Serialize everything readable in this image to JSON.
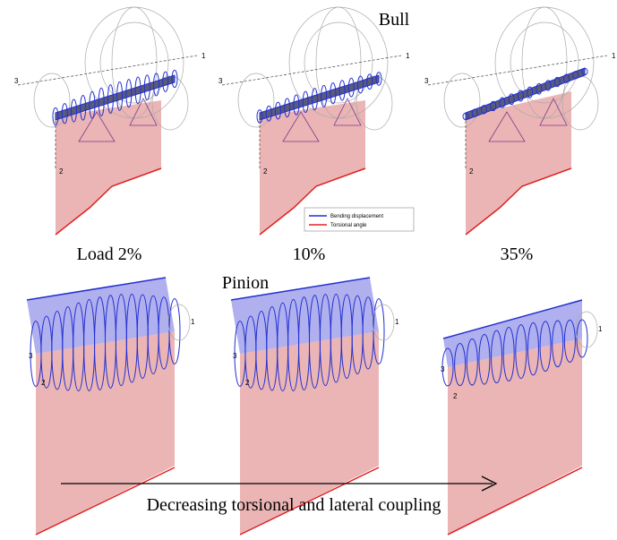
{
  "top_title": "Bull",
  "bottom_title": "Pinion",
  "load_labels": [
    "Load 2%",
    "10%",
    "35%"
  ],
  "legend": [
    "Bending displacement",
    "Torsional angle"
  ],
  "panels": [
    {
      "axes": [
        "1",
        "2",
        "3"
      ]
    },
    {
      "axes": [
        "1",
        "2",
        "3"
      ]
    },
    {
      "axes": [
        "1",
        "2",
        "3"
      ]
    },
    {
      "axes": [
        "1",
        "2",
        "3"
      ]
    },
    {
      "axes": [
        "1",
        "2",
        "3"
      ]
    },
    {
      "axes": [
        "1",
        "2",
        "3"
      ]
    }
  ],
  "arrow_label": "Decreasing torsional and lateral coupling"
}
